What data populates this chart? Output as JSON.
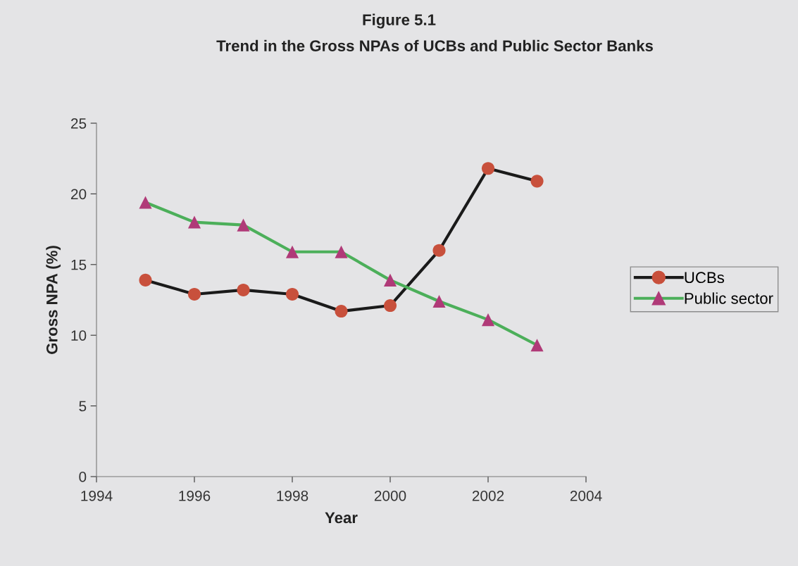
{
  "chart_data": {
    "type": "line",
    "title": "Figure 5.1",
    "subtitle": "Trend in the Gross NPAs of UCBs and Public Sector Banks",
    "xlabel": "Year",
    "ylabel": "Gross NPA (%)",
    "x": [
      1995,
      1996,
      1997,
      1998,
      1999,
      2000,
      2001,
      2002,
      2003
    ],
    "series": [
      {
        "name": "UCBs",
        "color": "#1a1a1a",
        "colors": [
          "#c8503c",
          "#c8503c",
          "#c8503c",
          "#c8503c",
          "#c8503c",
          "#c8503c",
          "#c8503c",
          "#c8503c",
          "#c8503c"
        ],
        "marker": "circle",
        "values": [
          13.9,
          12.9,
          13.2,
          12.9,
          11.7,
          12.1,
          16.0,
          21.8,
          20.9
        ]
      },
      {
        "name": "Public sector",
        "color": "#4caf5a",
        "colors": [
          "#b03a78",
          "#b03a78",
          "#b03a78",
          "#b03a78",
          "#b03a78",
          "#b03a78",
          "#b03a78",
          "#b03a78",
          "#b03a78"
        ],
        "marker": "triangle",
        "values": [
          19.4,
          18.0,
          17.8,
          15.9,
          15.9,
          13.9,
          12.4,
          11.1,
          9.3
        ]
      }
    ],
    "xlim": [
      1994,
      2004
    ],
    "xticks": [
      1994,
      1996,
      1998,
      2000,
      2002,
      2004
    ],
    "ylim": [
      0,
      25
    ],
    "yticks": [
      0,
      5,
      10,
      15,
      20,
      25
    ],
    "grid": false,
    "legend": "right"
  }
}
